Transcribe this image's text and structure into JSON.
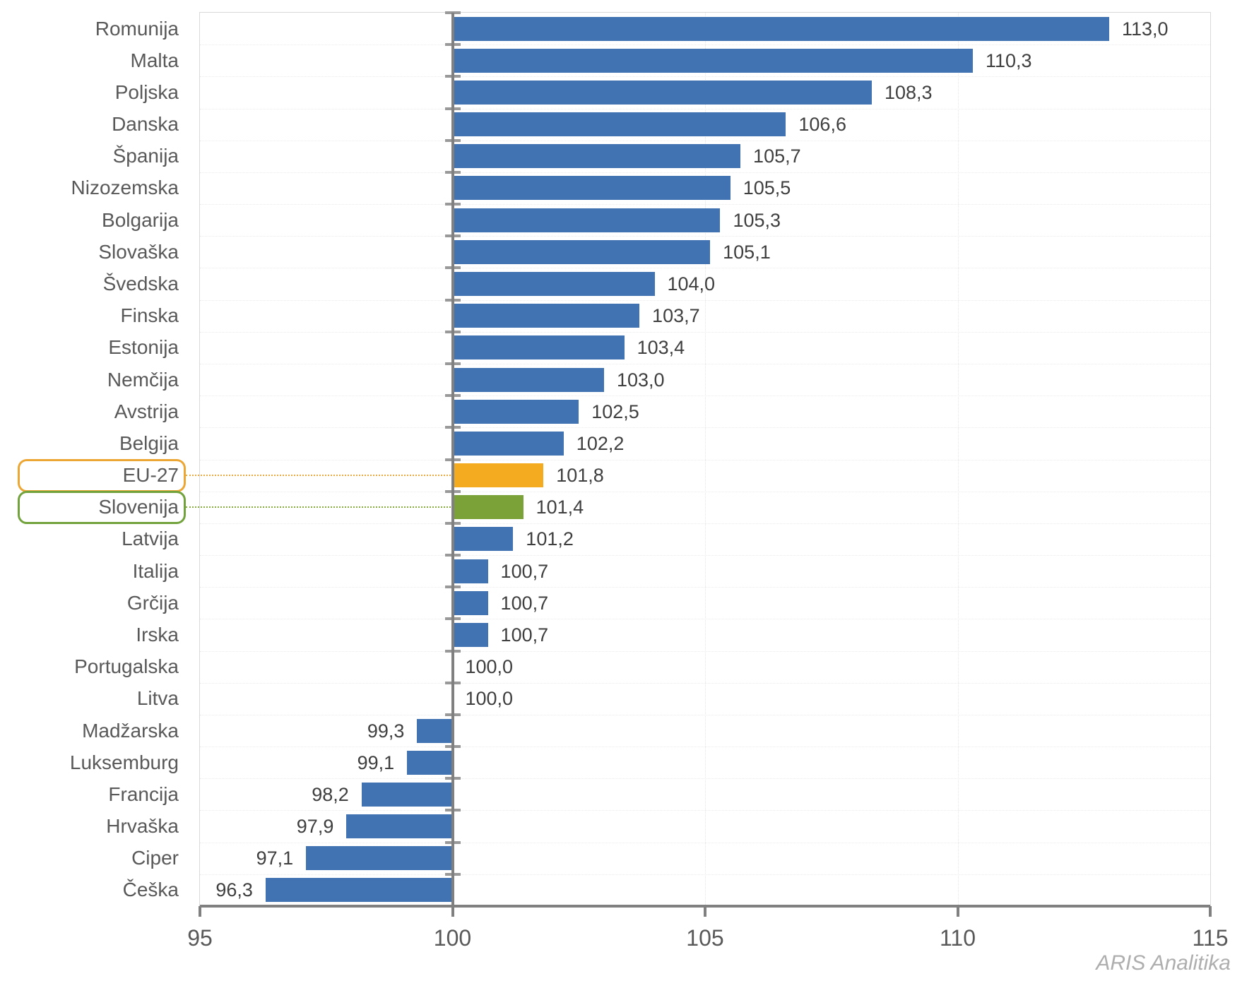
{
  "chart_data": {
    "type": "bar",
    "orientation": "horizontal",
    "title": "",
    "xlabel": "",
    "ylabel": "",
    "xlim": [
      95,
      115
    ],
    "baseline": 100,
    "grid": "light-dotted",
    "decimal_separator": ",",
    "x_axis": {
      "ticks": [
        95,
        100,
        105,
        110,
        115
      ],
      "labels": [
        "95",
        "100",
        "105",
        "110",
        "115"
      ]
    },
    "categories": [
      "Romunija",
      "Malta",
      "Poljska",
      "Danska",
      "Španija",
      "Nizozemska",
      "Bolgarija",
      "Slovaška",
      "Švedska",
      "Finska",
      "Estonija",
      "Nemčija",
      "Avstrija",
      "Belgija",
      "EU-27",
      "Slovenija",
      "Latvija",
      "Italija",
      "Grčija",
      "Irska",
      "Portugalska",
      "Litva",
      "Madžarska",
      "Luksemburg",
      "Francija",
      "Hrvaška",
      "Ciper",
      "Češka"
    ],
    "values": [
      113.0,
      110.3,
      108.3,
      106.6,
      105.7,
      105.5,
      105.3,
      105.1,
      104.0,
      103.7,
      103.4,
      103.0,
      102.5,
      102.2,
      101.8,
      101.4,
      101.2,
      100.7,
      100.7,
      100.7,
      100.0,
      100.0,
      99.3,
      99.1,
      98.2,
      97.9,
      97.1,
      96.3
    ],
    "rows": [
      {
        "label": "Romunija",
        "value": 113.0,
        "display": "113,0",
        "color": "blue",
        "highlight": null
      },
      {
        "label": "Malta",
        "value": 110.3,
        "display": "110,3",
        "color": "blue",
        "highlight": null
      },
      {
        "label": "Poljska",
        "value": 108.3,
        "display": "108,3",
        "color": "blue",
        "highlight": null
      },
      {
        "label": "Danska",
        "value": 106.6,
        "display": "106,6",
        "color": "blue",
        "highlight": null
      },
      {
        "label": "Španija",
        "value": 105.7,
        "display": "105,7",
        "color": "blue",
        "highlight": null
      },
      {
        "label": "Nizozemska",
        "value": 105.5,
        "display": "105,5",
        "color": "blue",
        "highlight": null
      },
      {
        "label": "Bolgarija",
        "value": 105.3,
        "display": "105,3",
        "color": "blue",
        "highlight": null
      },
      {
        "label": "Slovaška",
        "value": 105.1,
        "display": "105,1",
        "color": "blue",
        "highlight": null
      },
      {
        "label": "Švedska",
        "value": 104.0,
        "display": "104,0",
        "color": "blue",
        "highlight": null
      },
      {
        "label": "Finska",
        "value": 103.7,
        "display": "103,7",
        "color": "blue",
        "highlight": null
      },
      {
        "label": "Estonija",
        "value": 103.4,
        "display": "103,4",
        "color": "blue",
        "highlight": null
      },
      {
        "label": "Nemčija",
        "value": 103.0,
        "display": "103,0",
        "color": "blue",
        "highlight": null
      },
      {
        "label": "Avstrija",
        "value": 102.5,
        "display": "102,5",
        "color": "blue",
        "highlight": null
      },
      {
        "label": "Belgija",
        "value": 102.2,
        "display": "102,2",
        "color": "blue",
        "highlight": null
      },
      {
        "label": "EU-27",
        "value": 101.8,
        "display": "101,8",
        "color": "orange",
        "highlight": "orange"
      },
      {
        "label": "Slovenija",
        "value": 101.4,
        "display": "101,4",
        "color": "green",
        "highlight": "green"
      },
      {
        "label": "Latvija",
        "value": 101.2,
        "display": "101,2",
        "color": "blue",
        "highlight": null
      },
      {
        "label": "Italija",
        "value": 100.7,
        "display": "100,7",
        "color": "blue",
        "highlight": null
      },
      {
        "label": "Grčija",
        "value": 100.7,
        "display": "100,7",
        "color": "blue",
        "highlight": null
      },
      {
        "label": "Irska",
        "value": 100.7,
        "display": "100,7",
        "color": "blue",
        "highlight": null
      },
      {
        "label": "Portugalska",
        "value": 100.0,
        "display": "100,0",
        "color": "blue",
        "highlight": null
      },
      {
        "label": "Litva",
        "value": 100.0,
        "display": "100,0",
        "color": "blue",
        "highlight": null
      },
      {
        "label": "Madžarska",
        "value": 99.3,
        "display": "99,3",
        "color": "blue",
        "highlight": null
      },
      {
        "label": "Luksemburg",
        "value": 99.1,
        "display": "99,1",
        "color": "blue",
        "highlight": null
      },
      {
        "label": "Francija",
        "value": 98.2,
        "display": "98,2",
        "color": "blue",
        "highlight": null
      },
      {
        "label": "Hrvaška",
        "value": 97.9,
        "display": "97,9",
        "color": "blue",
        "highlight": null
      },
      {
        "label": "Ciper",
        "value": 97.1,
        "display": "97,1",
        "color": "blue",
        "highlight": null
      },
      {
        "label": "Češka",
        "value": 96.3,
        "display": "96,3",
        "color": "blue",
        "highlight": null
      }
    ]
  },
  "colors": {
    "bar_blue": "#4173B2",
    "bar_orange": "#F5AB20",
    "bar_green": "#7AA239",
    "box_orange": "#ECA634",
    "box_green": "#72A23B",
    "leader_orange": "#E9A93C",
    "leader_green": "#85AC3C",
    "axis": "#808080",
    "cross_tick": "#999999",
    "country_label": "#595959",
    "value_label": "#3f3f3f",
    "tick_label": "#595959",
    "watermark": "#aeaeae"
  },
  "watermark": "ARIS Analitika"
}
